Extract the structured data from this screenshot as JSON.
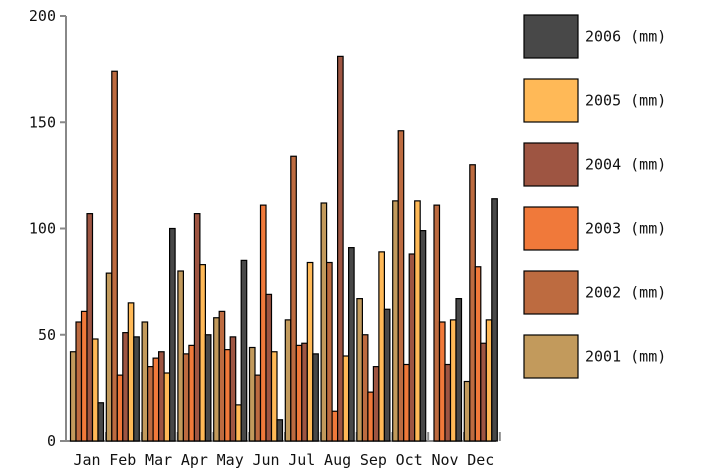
{
  "chart_data": {
    "type": "bar",
    "categories": [
      "Jan",
      "Feb",
      "Mar",
      "Apr",
      "May",
      "Jun",
      "Jul",
      "Aug",
      "Sep",
      "Oct",
      "Nov",
      "Dec"
    ],
    "series": [
      {
        "name": "2001 (mm)",
        "color": "#C29A5C",
        "values": [
          42,
          79,
          56,
          80,
          58,
          44,
          57,
          112,
          67,
          113,
          0,
          28
        ]
      },
      {
        "name": "2002 (mm)",
        "color": "#BD6B40",
        "values": [
          56,
          174,
          35,
          41,
          61,
          31,
          134,
          84,
          50,
          146,
          111,
          130
        ]
      },
      {
        "name": "2003 (mm)",
        "color": "#F0793A",
        "values": [
          61,
          31,
          39,
          45,
          43,
          111,
          45,
          14,
          23,
          36,
          56,
          82
        ]
      },
      {
        "name": "2004 (mm)",
        "color": "#9E5542",
        "values": [
          107,
          51,
          42,
          107,
          49,
          69,
          46,
          181,
          35,
          88,
          36,
          46
        ]
      },
      {
        "name": "2005 (mm)",
        "color": "#FFB957",
        "values": [
          48,
          65,
          32,
          83,
          17,
          42,
          84,
          40,
          89,
          113,
          57,
          57
        ]
      },
      {
        "name": "2006 (mm)",
        "color": "#484848",
        "values": [
          18,
          49,
          100,
          50,
          85,
          10,
          41,
          91,
          62,
          99,
          67,
          114
        ]
      }
    ],
    "legend_order": [
      "2006 (mm)",
      "2005 (mm)",
      "2004 (mm)",
      "2003 (mm)",
      "2002 (mm)",
      "2001 (mm)"
    ],
    "yticks": [
      0,
      50,
      100,
      150,
      200
    ],
    "ylim": [
      0,
      200
    ],
    "legend_position": "right",
    "grid": false
  }
}
